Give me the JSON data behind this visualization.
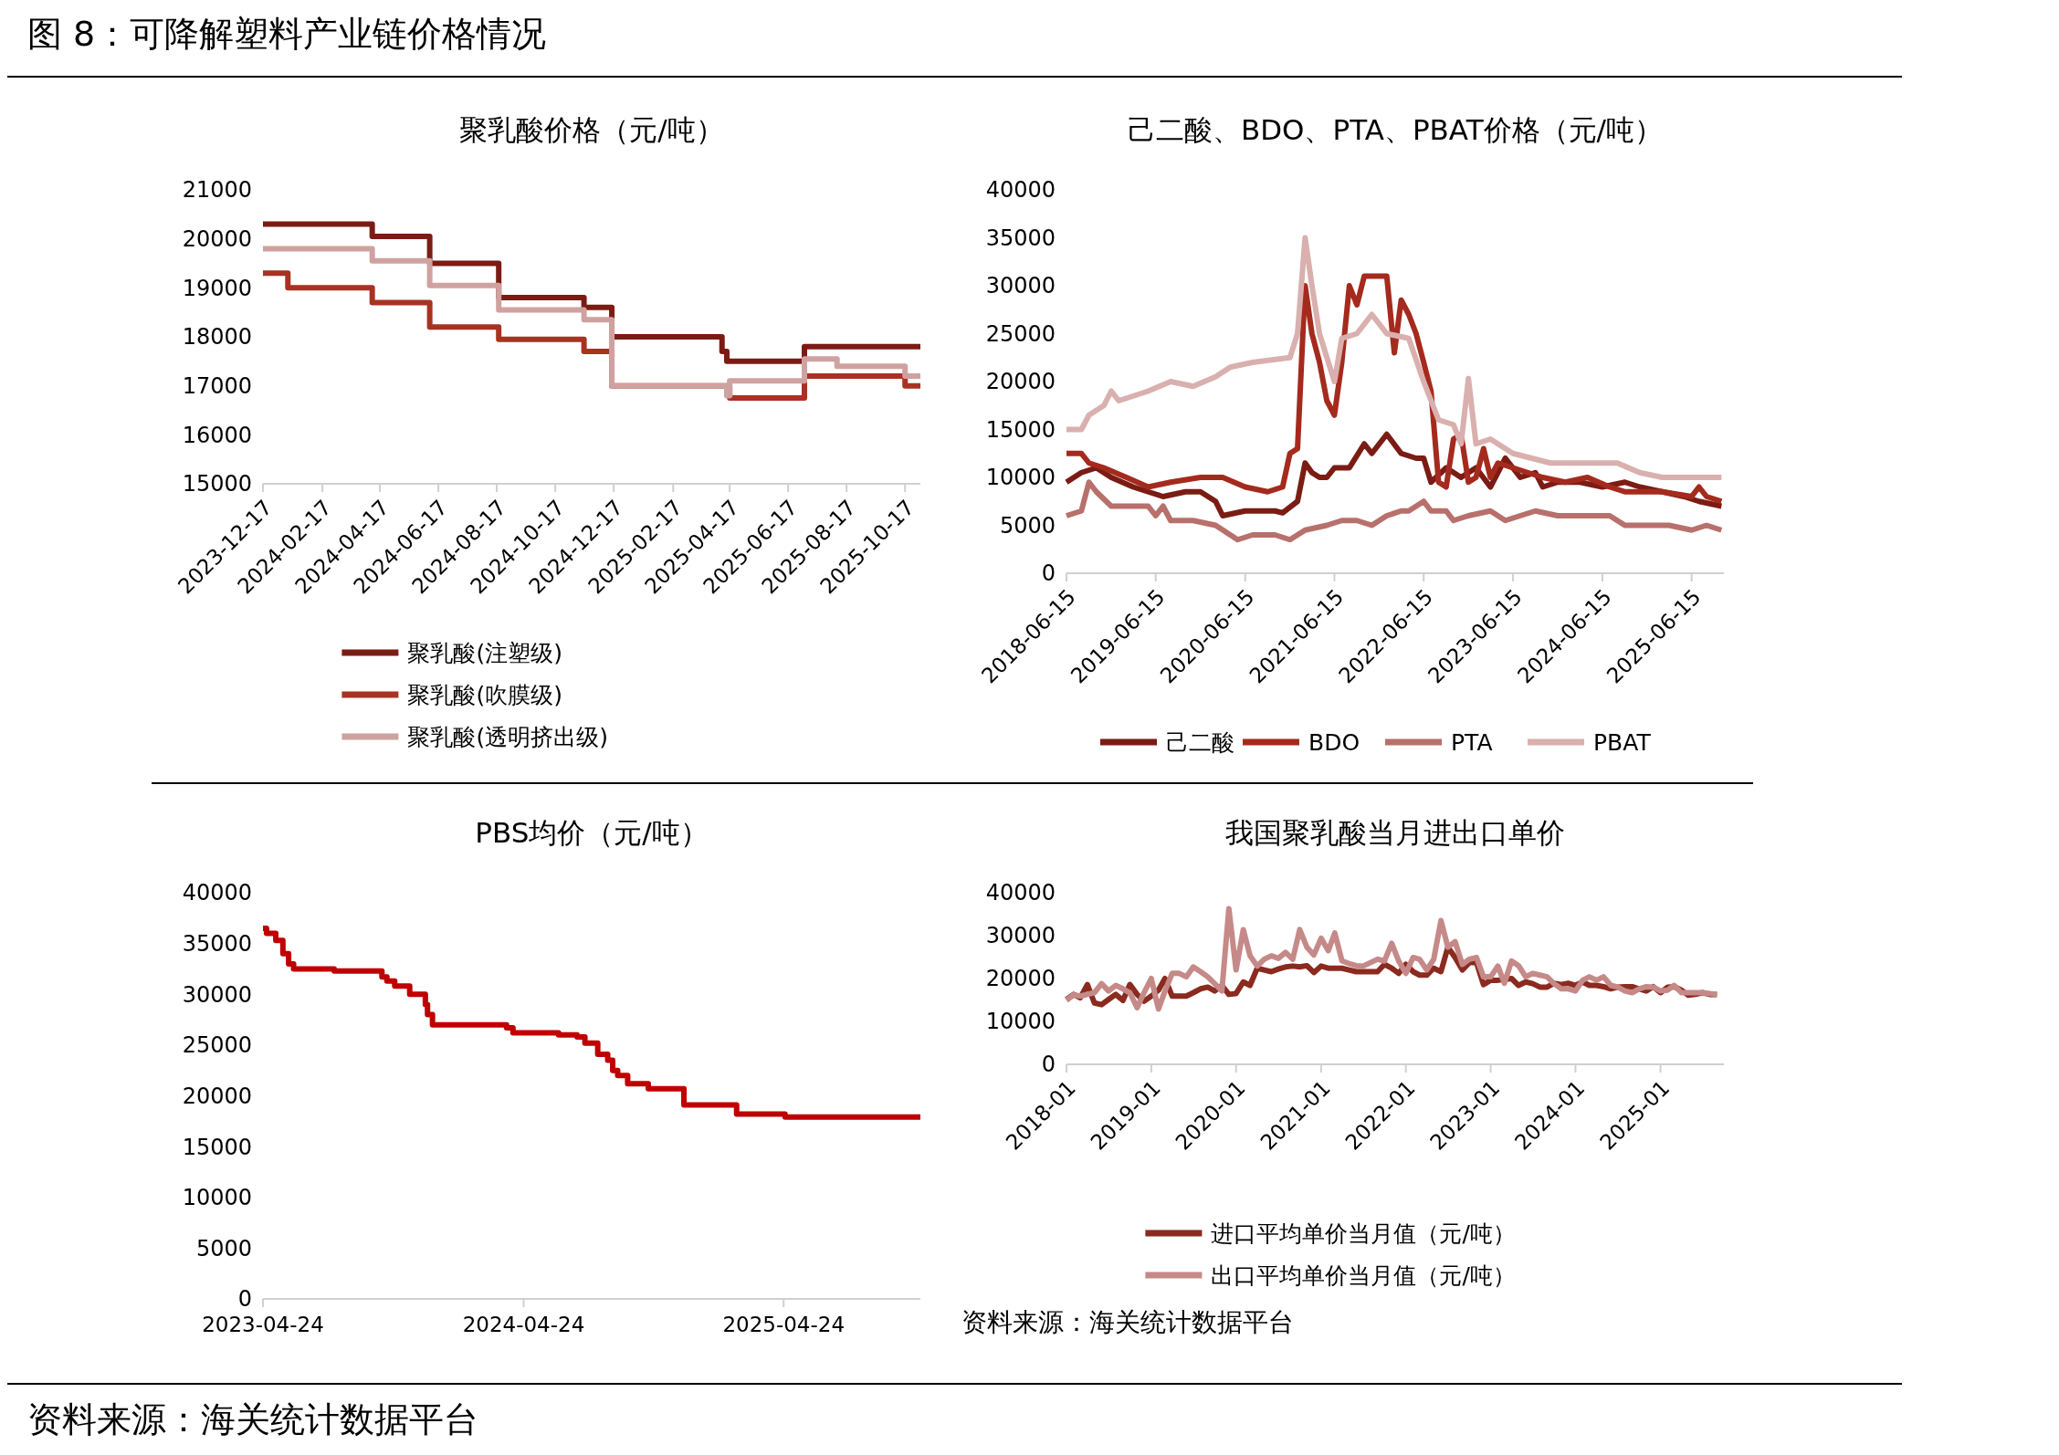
{
  "chart_data": [
    {
      "type": "step",
      "title": "聚乳酸价格（元/吨）",
      "annotations": [
        "图 8：可降解塑料产业链价格情况"
      ],
      "legend": "bottom",
      "xlim": [
        "2023-12-17",
        "2025-11-02"
      ],
      "xticks": [
        "2023-12-17",
        "2024-02-17",
        "2024-04-17",
        "2024-06-17",
        "2024-08-17",
        "2024-10-17",
        "2024-12-17",
        "2025-02-17",
        "2025-04-17",
        "2025-06-17",
        "2025-08-17",
        "2025-10-17"
      ],
      "ylim": [
        15000,
        21000
      ],
      "yticks": [
        15000,
        16000,
        17000,
        18000,
        19000,
        20000,
        21000
      ],
      "series": [
        {
          "name": "聚乳酸(注塑级)",
          "color": "#7b1c14",
          "x": [
            "2023-12-17",
            "2024-04-09",
            "2024-06-08",
            "2024-08-19",
            "2024-11-16",
            "2024-12-15",
            "2025-04-09",
            "2025-04-14",
            "2025-07-04",
            "2025-11-02"
          ],
          "values": [
            20300,
            20050,
            19500,
            18800,
            18600,
            18000,
            17700,
            17500,
            17800,
            17800
          ]
        },
        {
          "name": "聚乳酸(吹膜级)",
          "color": "#a83222",
          "x": [
            "2023-12-17",
            "2024-01-12",
            "2024-04-09",
            "2024-06-08",
            "2024-08-19",
            "2024-11-16",
            "2024-12-15",
            "2025-04-17",
            "2025-07-04",
            "2025-10-17",
            "2025-11-02"
          ],
          "values": [
            19300,
            19000,
            18700,
            18200,
            17950,
            17700,
            17000,
            16750,
            17200,
            17000,
            17000
          ]
        },
        {
          "name": "聚乳酸(透明挤出级)",
          "color": "#cfa2a0",
          "x": [
            "2023-12-17",
            "2024-04-09",
            "2024-06-08",
            "2024-08-19",
            "2024-11-16",
            "2024-12-15",
            "2025-04-14",
            "2025-04-17",
            "2025-07-04",
            "2025-08-07",
            "2025-10-17",
            "2025-11-02"
          ],
          "values": [
            19800,
            19550,
            19050,
            18550,
            18350,
            17000,
            16800,
            17100,
            17550,
            17400,
            17200,
            17200
          ]
        }
      ]
    },
    {
      "type": "line",
      "title": "己二酸、BDO、PTA、PBAT价格（元/吨）",
      "legend": "bottom",
      "xlim": [
        "2018-06-15",
        "2025-10-25"
      ],
      "xticks": [
        "2018-06-15",
        "2019-06-15",
        "2020-06-15",
        "2021-06-15",
        "2022-06-15",
        "2023-06-15",
        "2024-06-15",
        "2025-06-15"
      ],
      "ylim": [
        0,
        40000
      ],
      "yticks": [
        0,
        5000,
        10000,
        15000,
        20000,
        25000,
        30000,
        35000,
        40000
      ],
      "series": [
        {
          "name": "己二酸",
          "color": "#7b1c14",
          "x": [
            "2018-06-15",
            "2018-08-15",
            "2018-10-15",
            "2018-12-15",
            "2019-03-15",
            "2019-05-15",
            "2019-07-15",
            "2019-10-15",
            "2019-12-15",
            "2020-02-15",
            "2020-03-15",
            "2020-06-15",
            "2020-10-15",
            "2020-11-15",
            "2021-01-15",
            "2021-02-15",
            "2021-03-15",
            "2021-04-15",
            "2021-05-15",
            "2021-06-15",
            "2021-08-15",
            "2021-10-15",
            "2021-11-15",
            "2022-01-15",
            "2022-03-15",
            "2022-05-15",
            "2022-06-15",
            "2022-07-15",
            "2022-09-15",
            "2022-11-15",
            "2023-01-15",
            "2023-03-15",
            "2023-05-15",
            "2023-07-15",
            "2023-09-15",
            "2023-10-15",
            "2023-12-15",
            "2024-03-15",
            "2024-06-15",
            "2024-09-15",
            "2024-11-15",
            "2025-02-15",
            "2025-05-15",
            "2025-07-15",
            "2025-10-15"
          ],
          "values": [
            9500,
            10500,
            11000,
            10000,
            9000,
            8500,
            8000,
            8500,
            8500,
            7500,
            6000,
            6500,
            6500,
            6300,
            7500,
            11500,
            10500,
            10000,
            10000,
            11000,
            11000,
            13500,
            12500,
            14500,
            12500,
            12000,
            12000,
            9500,
            11000,
            10000,
            11000,
            9000,
            12000,
            10000,
            10500,
            9000,
            9500,
            9500,
            9000,
            9500,
            9000,
            8500,
            8000,
            7500,
            7000
          ]
        },
        {
          "name": "BDO",
          "color": "#a52a1e",
          "x": [
            "2018-06-15",
            "2018-08-15",
            "2018-09-15",
            "2018-11-15",
            "2019-02-15",
            "2019-05-15",
            "2019-08-15",
            "2019-12-15",
            "2020-03-15",
            "2020-06-15",
            "2020-09-15",
            "2020-11-15",
            "2020-12-15",
            "2021-01-15",
            "2021-02-15",
            "2021-03-15",
            "2021-04-15",
            "2021-05-15",
            "2021-06-15",
            "2021-07-15",
            "2021-08-15",
            "2021-09-15",
            "2021-10-15",
            "2022-01-15",
            "2022-02-15",
            "2022-03-15",
            "2022-04-15",
            "2022-05-15",
            "2022-06-15",
            "2022-07-15",
            "2022-08-15",
            "2022-09-15",
            "2022-10-15",
            "2022-11-15",
            "2022-12-15",
            "2023-01-15",
            "2023-02-15",
            "2023-03-15",
            "2023-04-15",
            "2023-06-15",
            "2023-08-15",
            "2023-10-15",
            "2024-01-15",
            "2024-04-15",
            "2024-07-15",
            "2024-09-15",
            "2024-11-15",
            "2025-02-15",
            "2025-06-15",
            "2025-07-15",
            "2025-08-15",
            "2025-10-15"
          ],
          "values": [
            12500,
            12500,
            11500,
            11000,
            10000,
            9000,
            9500,
            10000,
            10000,
            9000,
            8500,
            9000,
            12500,
            13000,
            30000,
            25000,
            22000,
            18000,
            16500,
            22000,
            30000,
            28000,
            31000,
            31000,
            23000,
            28500,
            27000,
            25000,
            22000,
            19000,
            9500,
            9000,
            14000,
            14500,
            9500,
            10000,
            13000,
            10000,
            11500,
            11000,
            10500,
            10000,
            9500,
            10000,
            9000,
            8500,
            8500,
            8500,
            8000,
            9000,
            8000,
            7500
          ]
        },
        {
          "name": "PTA",
          "color": "#b8706c",
          "x": [
            "2018-06-15",
            "2018-08-15",
            "2018-09-15",
            "2018-10-15",
            "2018-12-15",
            "2019-02-15",
            "2019-05-15",
            "2019-06-15",
            "2019-07-15",
            "2019-08-15",
            "2019-11-15",
            "2020-02-15",
            "2020-05-15",
            "2020-07-15",
            "2020-10-15",
            "2020-12-15",
            "2021-02-15",
            "2021-05-15",
            "2021-07-15",
            "2021-09-15",
            "2021-11-15",
            "2022-01-15",
            "2022-03-15",
            "2022-04-15",
            "2022-06-15",
            "2022-07-15",
            "2022-09-15",
            "2022-10-15",
            "2022-12-15",
            "2023-03-15",
            "2023-05-15",
            "2023-07-15",
            "2023-09-15",
            "2023-12-15",
            "2024-04-15",
            "2024-07-15",
            "2024-09-15",
            "2024-12-15",
            "2025-03-15",
            "2025-06-15",
            "2025-08-15",
            "2025-10-15"
          ],
          "values": [
            6000,
            6500,
            9500,
            8500,
            7000,
            7000,
            7000,
            6000,
            7000,
            5500,
            5500,
            5000,
            3500,
            4000,
            4000,
            3500,
            4500,
            5000,
            5500,
            5500,
            5000,
            6000,
            6500,
            6500,
            7500,
            6500,
            6500,
            5500,
            6000,
            6500,
            5500,
            6000,
            6500,
            6000,
            6000,
            6000,
            5000,
            5000,
            5000,
            4500,
            5000,
            4500
          ]
        },
        {
          "name": "PBAT",
          "color": "#d9b0ae",
          "x": [
            "2018-06-15",
            "2018-08-15",
            "2018-09-15",
            "2018-11-15",
            "2018-12-15",
            "2019-01-15",
            "2019-05-15",
            "2019-08-15",
            "2019-11-15",
            "2020-02-15",
            "2020-04-15",
            "2020-07-15",
            "2020-12-15",
            "2021-01-15",
            "2021-02-15",
            "2021-03-15",
            "2021-04-15",
            "2021-05-15",
            "2021-06-15",
            "2021-07-15",
            "2021-09-15",
            "2021-11-15",
            "2022-01-15",
            "2022-04-15",
            "2022-06-15",
            "2022-08-15",
            "2022-10-15",
            "2022-11-15",
            "2022-12-15",
            "2023-01-15",
            "2023-03-15",
            "2023-06-15",
            "2023-11-15",
            "2024-04-15",
            "2024-08-15",
            "2024-11-15",
            "2025-02-15",
            "2025-10-15"
          ],
          "values": [
            15000,
            15000,
            16500,
            17500,
            19000,
            18000,
            19000,
            20000,
            19500,
            20500,
            21500,
            22000,
            22500,
            25000,
            35000,
            30000,
            25000,
            22500,
            20000,
            24500,
            25000,
            27000,
            25000,
            24500,
            20000,
            16000,
            15500,
            13500,
            20300,
            13500,
            14000,
            12500,
            11500,
            11500,
            11500,
            10500,
            10000,
            10000
          ]
        }
      ]
    },
    {
      "type": "step",
      "title": "PBS均价（元/吨）",
      "xlim": [
        "2023-04-24",
        "2025-11-02"
      ],
      "xticks": [
        "2023-04-24",
        "2024-04-24",
        "2025-04-24"
      ],
      "ylim": [
        0,
        40000
      ],
      "yticks": [
        0,
        5000,
        10000,
        15000,
        20000,
        25000,
        30000,
        35000,
        40000
      ],
      "series": [
        {
          "color": "#c00000",
          "x": [
            "2023-04-24",
            "2023-04-29",
            "2023-05-12",
            "2023-05-22",
            "2023-05-30",
            "2023-06-06",
            "2023-08-02",
            "2023-10-08",
            "2023-10-15",
            "2023-10-26",
            "2023-11-16",
            "2023-12-08",
            "2023-12-11",
            "2023-12-18",
            "2024-03-31",
            "2024-04-09",
            "2024-06-12",
            "2024-07-08",
            "2024-07-19",
            "2024-08-06",
            "2024-08-20",
            "2024-08-27",
            "2024-09-03",
            "2024-09-17",
            "2024-10-16",
            "2024-12-05",
            "2025-02-17",
            "2025-04-26",
            "2025-11-02"
          ],
          "values": [
            36500,
            36000,
            35300,
            34000,
            33000,
            32500,
            32300,
            31700,
            31300,
            30800,
            30000,
            29000,
            28000,
            27000,
            26700,
            26200,
            26000,
            25800,
            25200,
            24100,
            23500,
            22500,
            22000,
            21200,
            20700,
            19100,
            18200,
            17900,
            17900
          ]
        }
      ]
    },
    {
      "type": "line",
      "title": "我国聚乳酸当月进出口单价",
      "legend": "bottom",
      "annotations": [
        "资料来源：海关统计数据平台",
        "资料来源：海关统计数据平台"
      ],
      "xlim": [
        "2018-01",
        "2025-10"
      ],
      "xticks": [
        "2018-01",
        "2019-01",
        "2020-01",
        "2021-01",
        "2022-01",
        "2023-01",
        "2024-01",
        "2025-01"
      ],
      "ylim": [
        0,
        40000
      ],
      "yticks": [
        0,
        10000,
        20000,
        30000,
        40000
      ],
      "x": [
        "2018-01",
        "2018-02",
        "2018-03",
        "2018-04",
        "2018-05",
        "2018-06",
        "2018-07",
        "2018-08",
        "2018-09",
        "2018-10",
        "2018-11",
        "2018-12",
        "2019-01",
        "2019-02",
        "2019-03",
        "2019-04",
        "2019-05",
        "2019-06",
        "2019-07",
        "2019-08",
        "2019-09",
        "2019-10",
        "2019-11",
        "2019-12",
        "2020-01",
        "2020-02",
        "2020-03",
        "2020-04",
        "2020-05",
        "2020-06",
        "2020-07",
        "2020-08",
        "2020-09",
        "2020-10",
        "2020-11",
        "2020-12",
        "2021-01",
        "2021-02",
        "2021-03",
        "2021-04",
        "2021-05",
        "2021-06",
        "2021-07",
        "2021-08",
        "2021-09",
        "2021-10",
        "2021-11",
        "2021-12",
        "2022-01",
        "2022-02",
        "2022-03",
        "2022-04",
        "2022-05",
        "2022-06",
        "2022-07",
        "2022-08",
        "2022-09",
        "2022-10",
        "2022-11",
        "2022-12",
        "2023-01",
        "2023-02",
        "2023-03",
        "2023-04",
        "2023-05",
        "2023-06",
        "2023-07",
        "2023-08",
        "2023-09",
        "2023-10",
        "2023-11",
        "2023-12",
        "2024-01",
        "2024-02",
        "2024-03",
        "2024-04",
        "2024-05",
        "2024-06",
        "2024-07",
        "2024-08",
        "2024-09",
        "2024-10",
        "2024-11",
        "2024-12",
        "2025-01",
        "2025-02",
        "2025-03",
        "2025-04",
        "2025-05",
        "2025-06",
        "2025-07",
        "2025-08",
        "2025-09"
      ],
      "series": [
        {
          "name": "进口平均单价当月值（元/吨）",
          "color": "#8b2a1e",
          "values": [
            15100,
            16300,
            15500,
            18600,
            14300,
            13900,
            15100,
            16300,
            14900,
            18600,
            16300,
            14700,
            15900,
            17300,
            20000,
            15900,
            15900,
            15900,
            16700,
            17600,
            18000,
            17100,
            18400,
            16300,
            16500,
            19200,
            18400,
            22400,
            22000,
            21600,
            22200,
            22700,
            22900,
            22700,
            23000,
            21400,
            22900,
            22400,
            22400,
            22400,
            22000,
            21600,
            21600,
            21600,
            21600,
            23300,
            22400,
            21200,
            23300,
            21600,
            20800,
            20800,
            22400,
            21600,
            27300,
            24900,
            22000,
            23700,
            23700,
            18600,
            19600,
            19600,
            19800,
            20000,
            18400,
            19200,
            18800,
            18000,
            18000,
            18900,
            18600,
            18900,
            18400,
            19200,
            18400,
            18400,
            18100,
            17600,
            18000,
            18100,
            18100,
            17600,
            17100,
            18100,
            16700,
            18000,
            18100,
            17300,
            16100,
            16300,
            16700,
            16300,
            16300
          ]
        },
        {
          "name": "出口平均单价当月值（元/吨）",
          "color": "#c58a88",
          "values": [
            14900,
            16200,
            15900,
            16300,
            16700,
            18800,
            17100,
            18400,
            17600,
            16700,
            13200,
            16700,
            20000,
            12900,
            17100,
            21200,
            21200,
            20400,
            22700,
            21600,
            20400,
            18800,
            17100,
            36300,
            22000,
            31400,
            25300,
            22900,
            24500,
            25300,
            24700,
            26100,
            24500,
            31400,
            27300,
            25500,
            29400,
            26500,
            30600,
            24100,
            23500,
            23000,
            22900,
            23700,
            24500,
            24100,
            28200,
            24100,
            21200,
            24900,
            24500,
            22000,
            24500,
            33500,
            27300,
            28600,
            23300,
            24500,
            24900,
            20400,
            20400,
            22900,
            18900,
            24100,
            23000,
            20400,
            21200,
            20800,
            20400,
            18800,
            17600,
            17600,
            17100,
            19600,
            20400,
            19600,
            20400,
            18400,
            18000,
            17100,
            16700,
            17600,
            18100,
            18000,
            17100,
            17300,
            18400,
            16700,
            16700,
            16700,
            16700,
            16500,
            16300
          ]
        }
      ]
    }
  ]
}
